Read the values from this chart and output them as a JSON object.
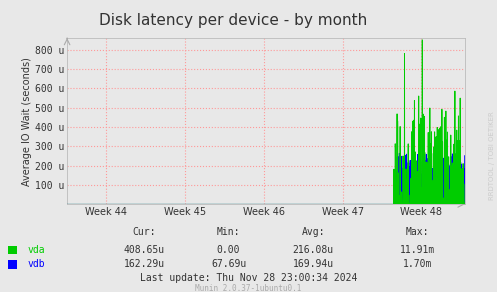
{
  "title": "Disk latency per device - by month",
  "ylabel": "Average IO Wait (seconds)",
  "ytick_labels": [
    "100 u",
    "200 u",
    "300 u",
    "400 u",
    "500 u",
    "600 u",
    "700 u",
    "800 u"
  ],
  "ytick_values": [
    100,
    200,
    300,
    400,
    500,
    600,
    700,
    800
  ],
  "ylim": [
    0,
    860
  ],
  "xlim": [
    43.5,
    48.55
  ],
  "xtick_positions": [
    44,
    45,
    46,
    47,
    48
  ],
  "xtick_labels": [
    "Week 44",
    "Week 45",
    "Week 46",
    "Week 47",
    "Week 48"
  ],
  "vda_color": "#00cc00",
  "vdb_color": "#0000ff",
  "fig_bg_color": "#e8e8e8",
  "plot_bg_color": "#e8e8e8",
  "grid_color": "#ff9999",
  "title_fontsize": 11,
  "axis_label_fontsize": 7,
  "tick_fontsize": 7,
  "legend_fontsize": 7,
  "watermark": "RRDTOOL / TOBI OETIKER",
  "munin_version": "Munin 2.0.37-1ubuntu0.1",
  "cur_vda": "408.65u",
  "min_vda": "0.00",
  "avg_vda": "216.08u",
  "max_vda": "11.91m",
  "cur_vdb": "162.29u",
  "min_vdb": "67.69u",
  "avg_vdb": "169.94u",
  "max_vdb": "1.70m",
  "last_update": "Last update: Thu Nov 28 23:00:34 2024",
  "spike_start_week": 47.65
}
